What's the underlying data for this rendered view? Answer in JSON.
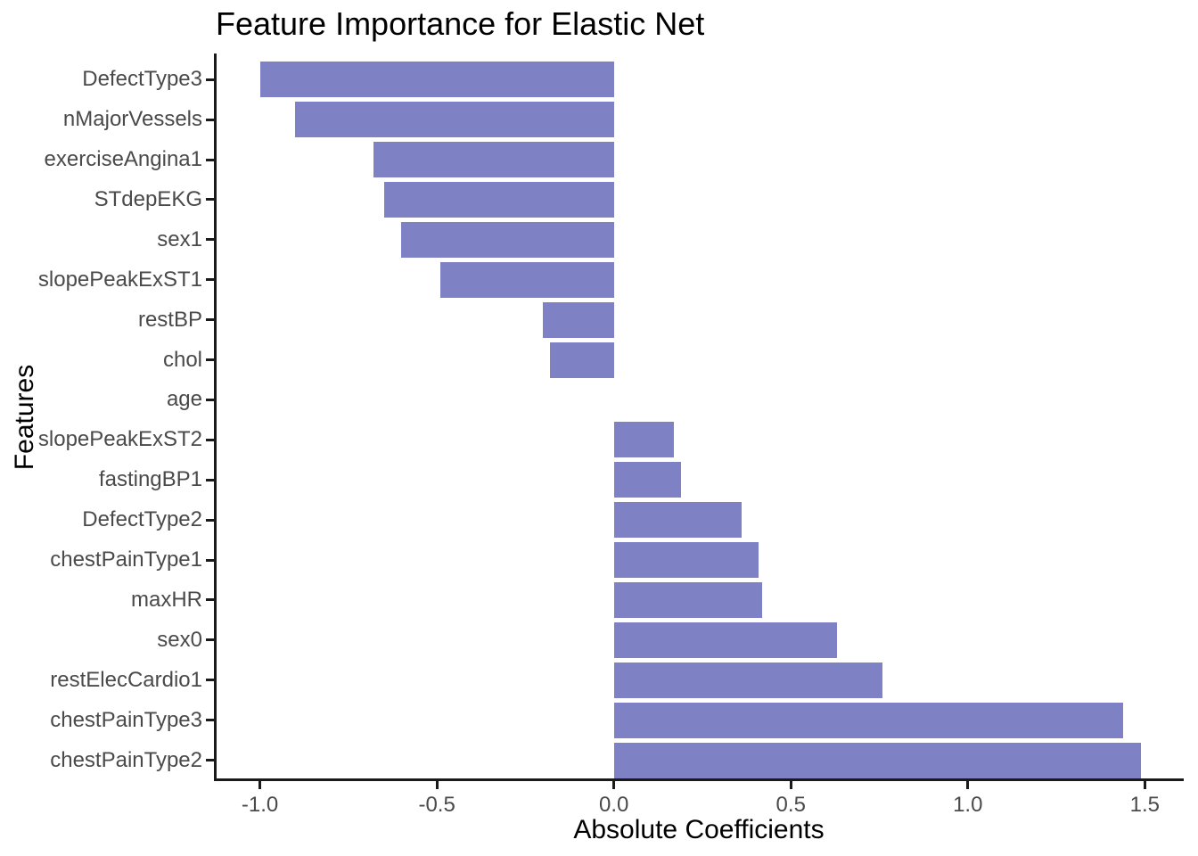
{
  "chart_data": {
    "type": "bar",
    "orientation": "horizontal",
    "title": "Feature Importance for Elastic Net",
    "xlabel": "Absolute Coefficients",
    "ylabel": "Features",
    "categories": [
      "DefectType3",
      "nMajorVessels",
      "exerciseAngina1",
      "STdepEKG",
      "sex1",
      "slopePeakExST1",
      "restBP",
      "chol",
      "age",
      "slopePeakExST2",
      "fastingBP1",
      "DefectType2",
      "chestPainType1",
      "maxHR",
      "sex0",
      "restElecCardio1",
      "chestPainType3",
      "chestPainType2"
    ],
    "values": [
      -1.0,
      -0.9,
      -0.68,
      -0.65,
      -0.6,
      -0.49,
      -0.2,
      -0.18,
      0.0,
      0.17,
      0.19,
      0.36,
      0.41,
      0.42,
      0.63,
      0.76,
      1.44,
      1.49
    ],
    "xticks": [
      -1.0,
      -0.5,
      0.0,
      0.5,
      1.0,
      1.5
    ],
    "xtick_labels": [
      "-1.0",
      "-0.5",
      "0.0",
      "0.5",
      "1.0",
      "1.5"
    ],
    "xlim": [
      -1.13,
      1.61
    ],
    "grid": false,
    "legend": false,
    "bar_color": "#7F81C5",
    "axis_line_color": "#1a1a1a",
    "tick_label_color": "#4a4a4a",
    "title_color": "#000000",
    "background": "#ffffff"
  }
}
